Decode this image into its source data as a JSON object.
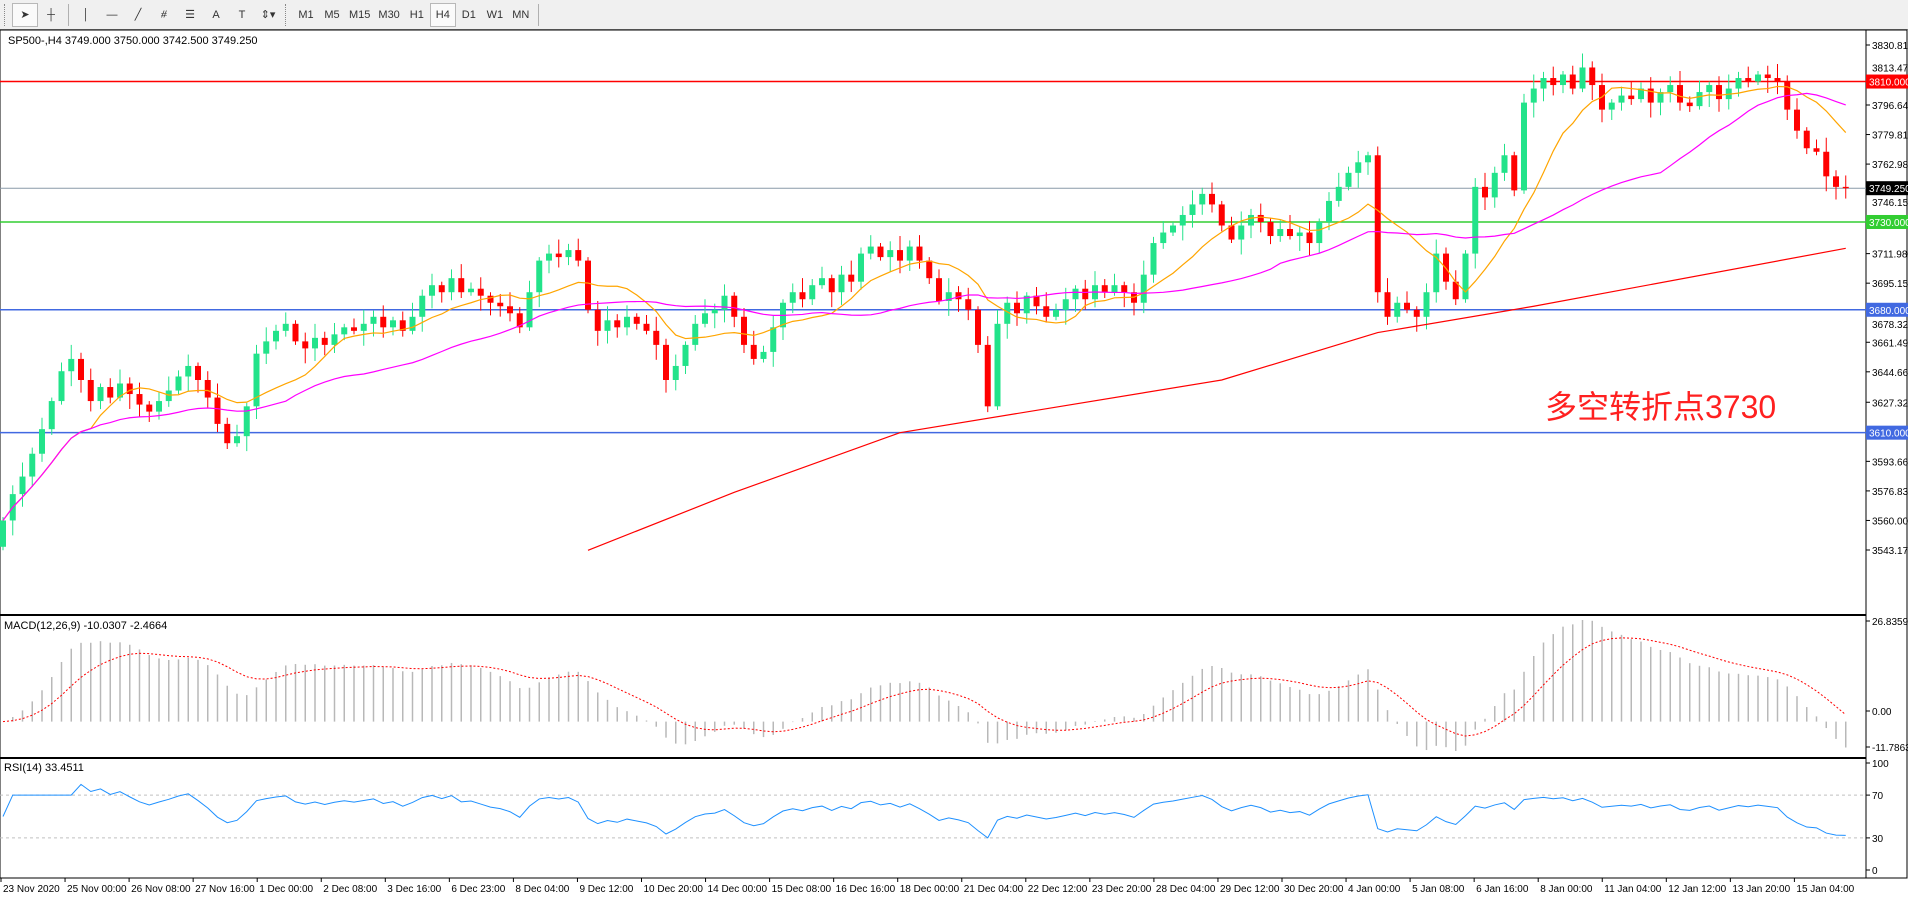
{
  "toolbar": {
    "tools": [
      {
        "name": "cursor-arrow-icon",
        "glyph": "➤"
      },
      {
        "name": "crosshair-icon",
        "glyph": "┼"
      },
      {
        "name": "vertical-line-icon",
        "glyph": "│"
      },
      {
        "name": "horizontal-line-icon",
        "glyph": "—"
      },
      {
        "name": "trendline-icon",
        "glyph": "╱"
      },
      {
        "name": "fibonacci-icon",
        "glyph": "⧣"
      },
      {
        "name": "fibo-fan-icon",
        "glyph": "☰"
      },
      {
        "name": "text-icon",
        "glyph": "A"
      },
      {
        "name": "text-label-icon",
        "glyph": "T"
      },
      {
        "name": "arrows-dropdown-icon",
        "glyph": "⇕▾"
      }
    ],
    "timeframes": [
      "M1",
      "M5",
      "M15",
      "M30",
      "H1",
      "H4",
      "D1",
      "W1",
      "MN"
    ],
    "active_timeframe": "H4"
  },
  "header": {
    "legend": "SP500-,H4  3749.000 3750.000 3742.500 3749.250"
  },
  "annotation": {
    "text": "多空转折点3730",
    "color": "#ff2020"
  },
  "colors": {
    "bull": "#22e38a",
    "bear": "#ff0000",
    "ma_fast": "#ffa500",
    "ma_mid": "#ff00ff",
    "ma_long": "#ff0000"
  },
  "chart_data": {
    "type": "candlestick",
    "symbol": "SP500-",
    "timeframe": "H4",
    "ohlc_last": {
      "open": 3749.0,
      "high": 3750.0,
      "low": 3742.5,
      "close": 3749.25
    },
    "closes": [
      3560,
      3575,
      3585,
      3598,
      3612,
      3628,
      3645,
      3652,
      3640,
      3628,
      3636,
      3630,
      3638,
      3632,
      3626,
      3622,
      3628,
      3634,
      3642,
      3648,
      3640,
      3630,
      3615,
      3604,
      3608,
      3625,
      3655,
      3662,
      3668,
      3672,
      3662,
      3658,
      3664,
      3660,
      3666,
      3670,
      3668,
      3672,
      3676,
      3670,
      3674,
      3668,
      3676,
      3688,
      3694,
      3690,
      3698,
      3690,
      3692,
      3688,
      3684,
      3682,
      3678,
      3670,
      3690,
      3708,
      3712,
      3710,
      3714,
      3708,
      3680,
      3668,
      3674,
      3670,
      3676,
      3672,
      3668,
      3660,
      3640,
      3648,
      3660,
      3672,
      3678,
      3680,
      3688,
      3676,
      3660,
      3652,
      3656,
      3670,
      3684,
      3690,
      3686,
      3694,
      3698,
      3690,
      3700,
      3696,
      3712,
      3716,
      3710,
      3714,
      3708,
      3716,
      3708,
      3698,
      3685,
      3690,
      3686,
      3680,
      3660,
      3625,
      3672,
      3684,
      3678,
      3688,
      3682,
      3676,
      3680,
      3686,
      3692,
      3686,
      3694,
      3690,
      3694,
      3690,
      3684,
      3700,
      3718,
      3724,
      3728,
      3734,
      3740,
      3746,
      3740,
      3728,
      3720,
      3728,
      3734,
      3730,
      3722,
      3726,
      3722,
      3724,
      3718,
      3730,
      3742,
      3750,
      3758,
      3764,
      3768,
      3690,
      3676,
      3684,
      3680,
      3676,
      3690,
      3712,
      3696,
      3686,
      3712,
      3750,
      3744,
      3758,
      3768,
      3748,
      3798,
      3806,
      3812,
      3808,
      3814,
      3806,
      3818,
      3808,
      3794,
      3798,
      3802,
      3800,
      3806,
      3798,
      3804,
      3808,
      3798,
      3796,
      3804,
      3808,
      3800,
      3806,
      3812,
      3810,
      3814,
      3812,
      3810,
      3794,
      3782,
      3772,
      3770,
      3756,
      3750,
      3749.25
    ],
    "ma_long_points": [
      [
        60,
        3543
      ],
      [
        75,
        3576
      ],
      [
        92,
        3610
      ],
      [
        125,
        3640
      ],
      [
        141,
        3667
      ],
      [
        157,
        3682
      ],
      [
        189,
        3715
      ]
    ],
    "price_axis": {
      "range": [
        3543.17,
        3830.81
      ],
      "ticks": [
        "3830.810",
        "3813.470",
        "3796.640",
        "3779.810",
        "3762.980",
        "3746.150",
        "3711.980",
        "3695.150",
        "3678.320",
        "3661.490",
        "3644.660",
        "3627.320",
        "3593.660",
        "3576.830",
        "3560.000",
        "3543.170"
      ]
    },
    "levels": [
      {
        "price": 3810.0,
        "label": "3810.000",
        "color": "#ff0000"
      },
      {
        "price": 3749.25,
        "label": "3749.250",
        "color": "#000000",
        "line": "#8a9aa8"
      },
      {
        "price": 3730.0,
        "label": "3730.000",
        "color": "#32cd32"
      },
      {
        "price": 3680.0,
        "label": "3680.000",
        "color": "#4169e1"
      },
      {
        "price": 3610.0,
        "label": "3610.000",
        "color": "#4169e1"
      }
    ],
    "time_labels": [
      "23 Nov 2020",
      "25 Nov 00:00",
      "26 Nov 08:00",
      "27 Nov 16:00",
      "1 Dec 00:00",
      "2 Dec 08:00",
      "3 Dec 16:00",
      "6 Dec 23:00",
      "8 Dec 04:00",
      "9 Dec 12:00",
      "10 Dec 20:00",
      "14 Dec 00:00",
      "15 Dec 08:00",
      "16 Dec 16:00",
      "18 Dec 00:00",
      "21 Dec 04:00",
      "22 Dec 12:00",
      "23 Dec 20:00",
      "28 Dec 04:00",
      "29 Dec 12:00",
      "30 Dec 20:00",
      "4 Jan 00:00",
      "5 Jan 08:00",
      "6 Jan 16:00",
      "8 Jan 00:00",
      "11 Jan 04:00",
      "12 Jan 12:00",
      "13 Jan 20:00",
      "15 Jan 04:00"
    ],
    "macd": {
      "label": "MACD(12,26,9) -10.0307 -2.4664",
      "max": 26.8359,
      "min": -11.7863,
      "ticks": [
        "26.8359",
        "0.00",
        "-11.7863"
      ]
    },
    "rsi": {
      "label": "RSI(14) 33.4511",
      "ticks": [
        "100",
        "70",
        "30",
        "0"
      ],
      "levels": [
        70,
        30
      ],
      "color": "#1e90ff"
    }
  }
}
